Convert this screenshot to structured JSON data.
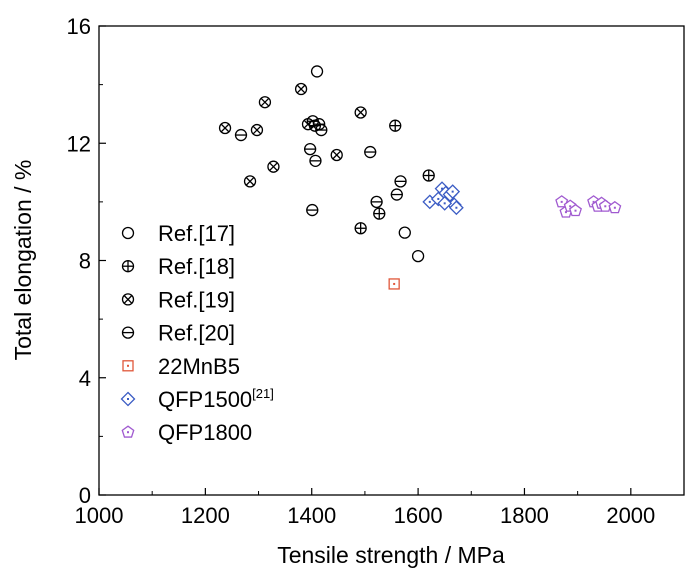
{
  "chart_data": {
    "type": "scatter",
    "xlabel": "Tensile strength / MPa",
    "ylabel": "Total elongation / %",
    "xlim": [
      1000,
      2100
    ],
    "ylim": [
      0,
      16
    ],
    "xticks": [
      "1000",
      "1200",
      "1400",
      "1600",
      "1800",
      "2000"
    ],
    "yticks": [
      "0",
      "4",
      "8",
      "12",
      "16"
    ],
    "legend_position": "bottom-left",
    "series": [
      {
        "name": "Ref.[17]",
        "marker": "circle",
        "color": "#000000",
        "points": [
          [
            1410,
            14.45
          ],
          [
            1575,
            8.95
          ],
          [
            1600,
            8.15
          ]
        ]
      },
      {
        "name": "Ref.[18]",
        "marker": "circle-plus",
        "color": "#000000",
        "points": [
          [
            1557,
            12.6
          ],
          [
            1620,
            10.9
          ],
          [
            1492,
            9.1
          ],
          [
            1527,
            9.6
          ]
        ]
      },
      {
        "name": "Ref.[19]",
        "marker": "circle-x",
        "color": "#000000",
        "points": [
          [
            1237,
            12.52
          ],
          [
            1297,
            12.45
          ],
          [
            1312,
            13.4
          ],
          [
            1380,
            13.85
          ],
          [
            1393,
            12.65
          ],
          [
            1492,
            13.05
          ],
          [
            1447,
            11.6
          ],
          [
            1328,
            11.2
          ],
          [
            1284,
            10.7
          ]
        ]
      },
      {
        "name": "Ref.[20]",
        "marker": "circle-dash",
        "color": "#000000",
        "points": [
          [
            1267,
            12.28
          ],
          [
            1402,
            12.75
          ],
          [
            1406,
            12.6
          ],
          [
            1414,
            12.65
          ],
          [
            1418,
            12.45
          ],
          [
            1397,
            11.8
          ],
          [
            1407,
            11.4
          ],
          [
            1510,
            11.7
          ],
          [
            1401,
            9.72
          ],
          [
            1522,
            10.0
          ],
          [
            1567,
            10.7
          ],
          [
            1560,
            10.25
          ]
        ]
      },
      {
        "name": "22MnB5",
        "marker": "square",
        "color": "#e0573a",
        "points": [
          [
            1555,
            7.2
          ]
        ]
      },
      {
        "name": "QFP1500",
        "name_sup": "[21]",
        "marker": "diamond",
        "color": "#3b5cc4",
        "points": [
          [
            1622,
            10.0
          ],
          [
            1638,
            10.1
          ],
          [
            1645,
            10.45
          ],
          [
            1652,
            10.3
          ],
          [
            1660,
            10.25
          ],
          [
            1665,
            10.35
          ],
          [
            1668,
            9.9
          ],
          [
            1672,
            9.8
          ],
          [
            1650,
            9.95
          ]
        ]
      },
      {
        "name": "QFP1800",
        "marker": "pentagon",
        "color": "#a05ad0",
        "points": [
          [
            1870,
            10.0
          ],
          [
            1878,
            9.65
          ],
          [
            1886,
            9.85
          ],
          [
            1896,
            9.7
          ],
          [
            1930,
            10.0
          ],
          [
            1938,
            9.85
          ],
          [
            1945,
            9.95
          ],
          [
            1952,
            9.85
          ],
          [
            1970,
            9.8
          ]
        ]
      }
    ]
  }
}
